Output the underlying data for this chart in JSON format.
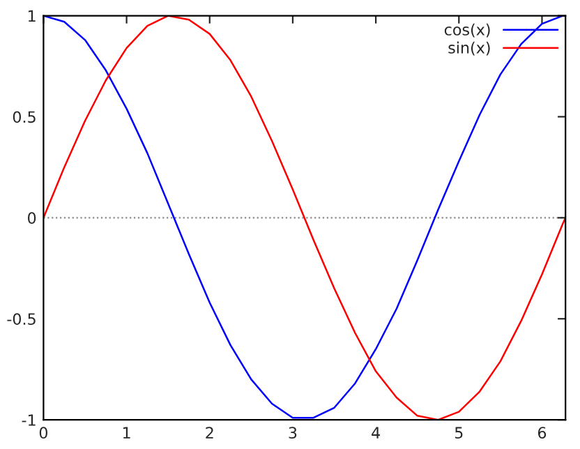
{
  "chart_data": {
    "type": "line",
    "x": [
      0,
      0.25,
      0.5,
      0.75,
      1,
      1.25,
      1.5,
      1.75,
      2,
      2.25,
      2.5,
      2.75,
      3,
      3.25,
      3.5,
      3.75,
      4,
      4.25,
      4.5,
      4.75,
      5,
      5.25,
      5.5,
      5.75,
      6,
      6.25,
      6.283
    ],
    "series": [
      {
        "name": "cos(x)",
        "color": "#0000ff",
        "values": [
          1,
          0.97,
          0.88,
          0.73,
          0.54,
          0.32,
          0.07,
          -0.18,
          -0.42,
          -0.63,
          -0.8,
          -0.92,
          -0.99,
          -0.99,
          -0.94,
          -0.82,
          -0.65,
          -0.45,
          -0.21,
          0.04,
          0.28,
          0.51,
          0.71,
          0.86,
          0.96,
          1.0,
          1
        ]
      },
      {
        "name": "sin(x)",
        "color": "#ff0000",
        "values": [
          0,
          0.25,
          0.48,
          0.68,
          0.84,
          0.95,
          1.0,
          0.98,
          0.91,
          0.78,
          0.6,
          0.38,
          0.14,
          -0.11,
          -0.35,
          -0.57,
          -0.76,
          -0.89,
          -0.98,
          -1.0,
          -0.96,
          -0.86,
          -0.71,
          -0.51,
          -0.28,
          -0.03,
          0
        ]
      }
    ],
    "xlim": [
      0,
      6.283
    ],
    "xticks": [
      0,
      1,
      2,
      3,
      4,
      5,
      6
    ],
    "ylim": [
      -1,
      1
    ],
    "yticks": [
      -1,
      -0.5,
      0,
      0.5,
      1
    ],
    "ref_lines": [
      {
        "axis": "y",
        "value": 0,
        "color": "#888888",
        "line_style": "dotted"
      }
    ],
    "legend": "top right",
    "grid": false,
    "marker": "none",
    "line_style": "solid"
  }
}
